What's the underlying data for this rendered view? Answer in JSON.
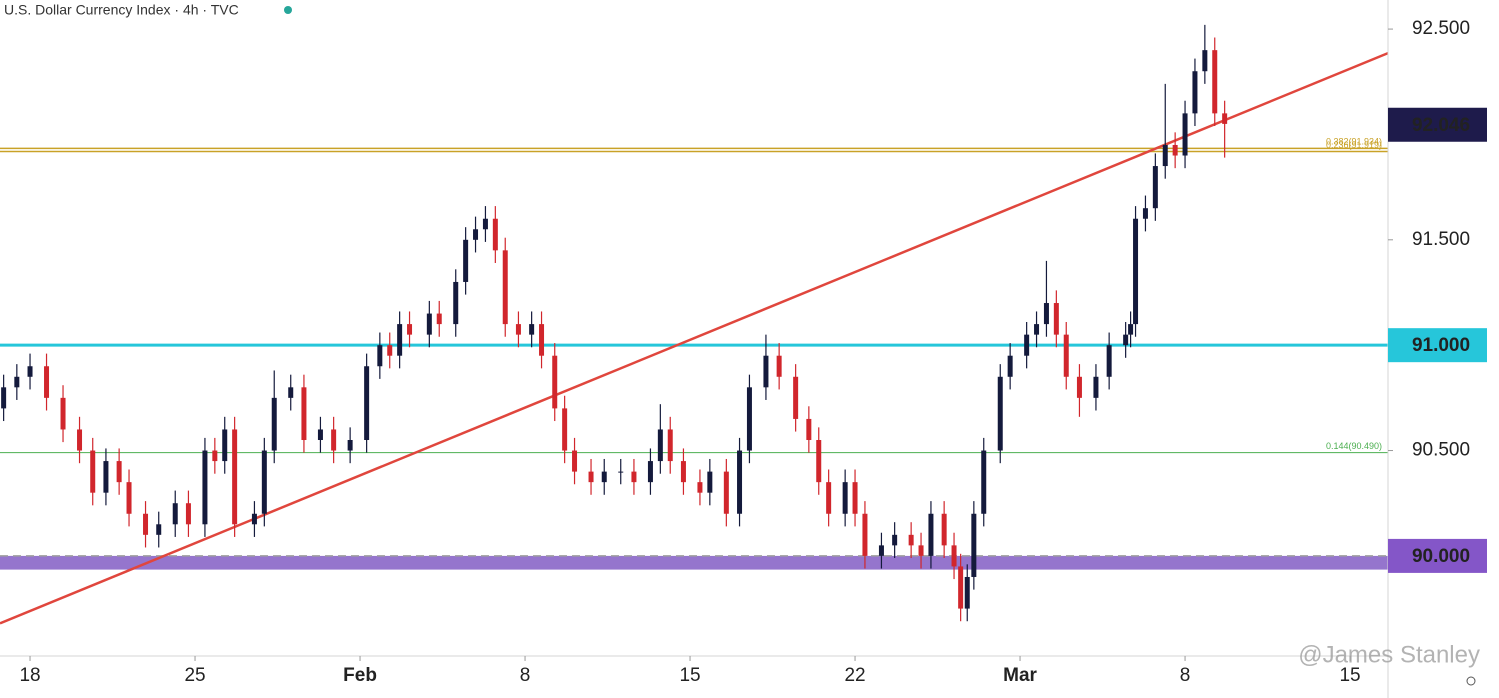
{
  "chart_data": {
    "type": "candlestick",
    "title": "U.S. Dollar Currency Index · 4h · TVC",
    "watermark": "@James Stanley",
    "up_color": "#141a3c",
    "down_color": "#d1262c",
    "xlim": [
      -0.91,
      41.15
    ],
    "ylim": [
      89.525,
      92.638
    ],
    "xticks": [
      {
        "value": 0,
        "label": "18"
      },
      {
        "value": 5,
        "label": "25"
      },
      {
        "value": 10,
        "label": "Feb"
      },
      {
        "value": 15,
        "label": "8"
      },
      {
        "value": 20,
        "label": "15"
      },
      {
        "value": 25,
        "label": "22"
      },
      {
        "value": 30,
        "label": "Mar"
      },
      {
        "value": 35,
        "label": "8"
      },
      {
        "value": 40,
        "label": "15"
      }
    ],
    "yticks": [
      {
        "value": 92.5,
        "label": "92.500"
      },
      {
        "value": 92,
        "label": "92.000"
      },
      {
        "value": 91.5,
        "label": "91.500"
      },
      {
        "value": 91,
        "label": "91.000"
      },
      {
        "value": 90.5,
        "label": "90.500"
      },
      {
        "value": 90,
        "label": "90.000"
      }
    ],
    "x": [
      -0.8,
      -0.4,
      0,
      0.5,
      1.0,
      1.5,
      1.9,
      2.3,
      2.7,
      3.0,
      3.5,
      3.9,
      4.4,
      4.8,
      5.3,
      5.6,
      5.9,
      6.2,
      6.8,
      7.1,
      7.4,
      7.9,
      8.3,
      8.8,
      9.2,
      9.7,
      10.2,
      10.6,
      10.9,
      11.2,
      11.5,
      12.1,
      12.4,
      12.9,
      13.2,
      13.5,
      13.8,
      14.1,
      14.4,
      14.8,
      15.2,
      15.5,
      15.9,
      16.2,
      16.5,
      17.0,
      17.4,
      17.9,
      18.3,
      18.8,
      19.1,
      19.4,
      19.8,
      20.3,
      20.6,
      21.1,
      21.5,
      21.8,
      22.3,
      22.7,
      23.2,
      23.6,
      23.9,
      24.2,
      24.7,
      25.0,
      25.3,
      25.8,
      26.2,
      26.7,
      27.0,
      27.3,
      27.7,
      28.0,
      28.2,
      28.4,
      28.6,
      28.9,
      29.4,
      29.7,
      30.2,
      30.5,
      30.8,
      31.1,
      31.4,
      31.8,
      32.3,
      32.7,
      33.2,
      33.35,
      33.5,
      33.8,
      34.1,
      34.4,
      34.7,
      35.0,
      35.3,
      35.6,
      35.9,
      36.2
    ],
    "open": [
      90.7,
      90.8,
      90.85,
      90.9,
      90.75,
      90.6,
      90.5,
      90.3,
      90.45,
      90.35,
      90.2,
      90.1,
      90.15,
      90.25,
      90.15,
      90.5,
      90.45,
      90.6,
      90.15,
      90.2,
      90.5,
      90.75,
      90.8,
      90.55,
      90.6,
      90.5,
      90.55,
      90.9,
      91.0,
      90.95,
      91.1,
      91.05,
      91.15,
      91.1,
      91.3,
      91.5,
      91.55,
      91.6,
      91.45,
      91.1,
      91.05,
      91.1,
      90.95,
      90.7,
      90.5,
      90.4,
      90.35,
      90.4,
      90.4,
      90.35,
      90.45,
      90.6,
      90.45,
      90.35,
      90.3,
      90.4,
      90.2,
      90.5,
      90.8,
      90.95,
      90.85,
      90.65,
      90.55,
      90.35,
      90.2,
      90.35,
      90.2,
      90.0,
      90.05,
      90.1,
      90.05,
      90.0,
      90.2,
      90.05,
      89.95,
      89.75,
      89.9,
      90.2,
      90.5,
      90.85,
      90.95,
      91.05,
      91.1,
      91.2,
      91.05,
      90.85,
      90.75,
      90.85,
      91.0,
      91.05,
      91.1,
      91.6,
      91.65,
      91.85,
      91.95,
      91.9,
      92.1,
      92.3,
      92.4,
      92.1
    ],
    "high": [
      90.86,
      90.91,
      90.96,
      90.96,
      90.81,
      90.66,
      90.56,
      90.51,
      90.51,
      90.41,
      90.26,
      90.21,
      90.31,
      90.31,
      90.56,
      90.56,
      90.66,
      90.66,
      90.26,
      90.56,
      90.88,
      90.86,
      90.86,
      90.66,
      90.66,
      90.61,
      90.96,
      91.06,
      91.06,
      91.16,
      91.16,
      91.21,
      91.21,
      91.36,
      91.56,
      91.61,
      91.66,
      91.66,
      91.51,
      91.16,
      91.16,
      91.16,
      91.01,
      90.76,
      90.56,
      90.46,
      90.46,
      90.46,
      90.46,
      90.51,
      90.72,
      90.66,
      90.51,
      90.41,
      90.46,
      90.46,
      90.56,
      90.86,
      91.05,
      91.01,
      90.91,
      90.71,
      90.61,
      90.41,
      90.41,
      90.41,
      90.26,
      90.11,
      90.16,
      90.16,
      90.11,
      90.26,
      90.26,
      90.11,
      90.01,
      89.96,
      90.26,
      90.56,
      90.91,
      91.01,
      91.11,
      91.16,
      91.4,
      91.26,
      91.11,
      90.91,
      90.91,
      91.06,
      91.11,
      91.16,
      91.66,
      91.71,
      91.91,
      92.24,
      92.01,
      92.16,
      92.36,
      92.52,
      92.46,
      92.16
    ],
    "low": [
      90.64,
      90.74,
      90.79,
      90.69,
      90.54,
      90.44,
      90.24,
      90.24,
      90.29,
      90.14,
      90.04,
      90.04,
      90.09,
      90.09,
      90.09,
      90.39,
      90.39,
      90.09,
      90.09,
      90.14,
      90.44,
      90.69,
      90.49,
      90.49,
      90.44,
      90.44,
      90.49,
      90.84,
      90.89,
      90.89,
      90.99,
      90.99,
      91.04,
      91.04,
      91.24,
      91.44,
      91.49,
      91.39,
      91.04,
      90.99,
      90.99,
      90.89,
      90.64,
      90.44,
      90.34,
      90.29,
      90.29,
      90.34,
      90.29,
      90.29,
      90.39,
      90.39,
      90.29,
      90.24,
      90.24,
      90.14,
      90.14,
      90.44,
      90.74,
      90.79,
      90.59,
      90.49,
      90.29,
      90.14,
      90.14,
      90.14,
      89.94,
      89.94,
      89.99,
      89.99,
      89.94,
      89.94,
      89.99,
      89.89,
      89.69,
      89.69,
      89.84,
      90.14,
      90.44,
      90.79,
      90.89,
      90.99,
      91.04,
      90.99,
      90.79,
      90.66,
      90.69,
      90.79,
      90.94,
      90.99,
      91.04,
      91.54,
      91.59,
      91.79,
      91.84,
      91.84,
      92.04,
      92.24,
      92.04,
      91.89
    ],
    "close": [
      90.8,
      90.85,
      90.9,
      90.75,
      90.6,
      90.5,
      90.3,
      90.45,
      90.35,
      90.2,
      90.1,
      90.15,
      90.25,
      90.15,
      90.5,
      90.45,
      90.6,
      90.15,
      90.2,
      90.5,
      90.75,
      90.8,
      90.55,
      90.6,
      90.5,
      90.55,
      90.9,
      91.0,
      90.95,
      91.1,
      91.05,
      91.15,
      91.1,
      91.3,
      91.5,
      91.55,
      91.6,
      91.45,
      91.1,
      91.05,
      91.1,
      90.95,
      90.7,
      90.5,
      90.4,
      90.35,
      90.4,
      90.4,
      90.35,
      90.45,
      90.6,
      90.45,
      90.35,
      90.3,
      90.4,
      90.2,
      90.5,
      90.8,
      90.95,
      90.85,
      90.65,
      90.55,
      90.35,
      90.2,
      90.35,
      90.2,
      90.0,
      90.05,
      90.1,
      90.05,
      90.0,
      90.2,
      90.05,
      89.95,
      89.75,
      89.9,
      90.2,
      90.5,
      90.85,
      90.95,
      91.05,
      91.1,
      91.2,
      91.05,
      90.85,
      90.75,
      90.85,
      91.0,
      91.05,
      91.1,
      91.6,
      91.65,
      91.85,
      91.95,
      91.9,
      92.1,
      92.3,
      92.4,
      92.1,
      92.05
    ],
    "bands": [
      {
        "from": 89.935,
        "to": 90.0,
        "color": "#9575cd"
      }
    ],
    "levels": [
      {
        "value": 91.0,
        "color": "#26c6da",
        "width": 3
      },
      {
        "value": 90.0,
        "color": "#9e9e9e",
        "width": 1.5,
        "dashed": true
      },
      {
        "value": 91.934,
        "color": "#c9a227",
        "width": 1.5,
        "label": "0.382(91.934)"
      },
      {
        "value": 91.919,
        "color": "#c9a227",
        "width": 1.5,
        "label": "0.236(91.919)"
      },
      {
        "value": 90.49,
        "color": "#4caf50",
        "width": 1,
        "label": "0.144(90.490)"
      }
    ],
    "trendline": {
      "x": [
        -0.91,
        41.15
      ],
      "y": [
        89.68,
        92.386
      ],
      "color": "#e0463d"
    },
    "price_tags": [
      {
        "value": 92.046,
        "label": "92.046",
        "color": "#1e1b4b",
        "text_color": "#ffffff"
      },
      {
        "value": 91.0,
        "label": "91.000",
        "color": "#26c6da",
        "text_color": "#111111"
      },
      {
        "value": 90.0,
        "label": "90.000",
        "color": "#8456c8",
        "text_color": "#ffffff"
      }
    ]
  }
}
